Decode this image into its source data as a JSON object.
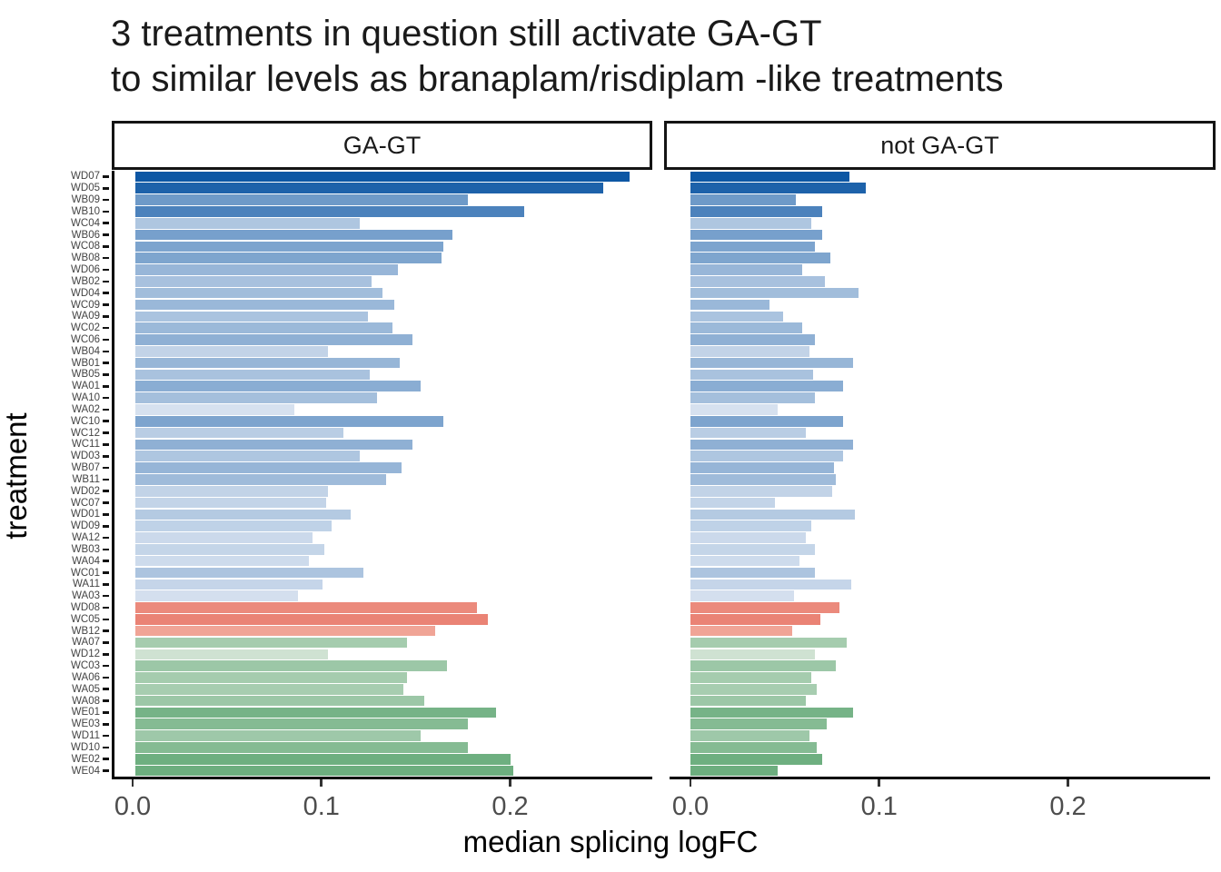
{
  "title": {
    "line1": "3 treatments in question still activate GA-GT",
    "line2": "to similar levels as branaplam/risdiplam -like treatments"
  },
  "facets": [
    {
      "label": "GA-GT"
    },
    {
      "label": "not GA-GT"
    }
  ],
  "axes": {
    "x_title": "median splicing logFC",
    "y_title": "treatment",
    "x_ticks": [
      "0.0",
      "0.1",
      "0.2"
    ],
    "x_tick_values": [
      0.0,
      0.1,
      0.2
    ]
  },
  "chart_data": {
    "type": "bar",
    "orientation": "horizontal",
    "title": "3 treatments in question still activate GA-GT to similar levels as branaplam/risdiplam -like treatments",
    "xlabel": "median splicing logFC",
    "ylabel": "treatment",
    "xlim": [
      0,
      0.2755
    ],
    "grid": false,
    "legend": false,
    "facet_labels": [
      "GA-GT",
      "not GA-GT"
    ],
    "categories": [
      "WD07",
      "WD05",
      "WB09",
      "WB10",
      "WC04",
      "WB06",
      "WC08",
      "WB08",
      "WD06",
      "WB02",
      "WD04",
      "WC09",
      "WA09",
      "WC02",
      "WC06",
      "WB04",
      "WB01",
      "WB05",
      "WA01",
      "WA10",
      "WA02",
      "WC10",
      "WC12",
      "WC11",
      "WD03",
      "WB07",
      "WB11",
      "WD02",
      "WC07",
      "WD01",
      "WD09",
      "WA12",
      "WB03",
      "WA04",
      "WC01",
      "WA11",
      "WA03",
      "WD08",
      "WC05",
      "WB12",
      "WA07",
      "WD12",
      "WC03",
      "WA06",
      "WA05",
      "WA08",
      "WE01",
      "WE03",
      "WD11",
      "WD10",
      "WE02",
      "WE04"
    ],
    "groups": [
      "ga-gt-activating",
      "ga-gt-activating",
      "ga-gt-activating",
      "ga-gt-activating",
      "ga-gt-activating",
      "ga-gt-activating",
      "ga-gt-activating",
      "ga-gt-activating",
      "ga-gt-activating",
      "ga-gt-activating",
      "ga-gt-activating",
      "ga-gt-activating",
      "ga-gt-activating",
      "ga-gt-activating",
      "ga-gt-activating",
      "ga-gt-activating",
      "ga-gt-activating",
      "ga-gt-activating",
      "ga-gt-activating",
      "ga-gt-activating",
      "ga-gt-activating",
      "ga-gt-activating",
      "ga-gt-activating",
      "ga-gt-activating",
      "ga-gt-activating",
      "ga-gt-activating",
      "ga-gt-activating",
      "ga-gt-activating",
      "ga-gt-activating",
      "ga-gt-activating",
      "ga-gt-activating",
      "ga-gt-activating",
      "ga-gt-activating",
      "ga-gt-activating",
      "ga-gt-activating",
      "ga-gt-activating",
      "ga-gt-activating",
      "treatment-in-question",
      "treatment-in-question",
      "treatment-in-question",
      "branaplam-risdiplam-like",
      "branaplam-risdiplam-like",
      "branaplam-risdiplam-like",
      "branaplam-risdiplam-like",
      "branaplam-risdiplam-like",
      "branaplam-risdiplam-like",
      "branaplam-risdiplam-like",
      "branaplam-risdiplam-like",
      "branaplam-risdiplam-like",
      "branaplam-risdiplam-like",
      "branaplam-risdiplam-like",
      "branaplam-risdiplam-like"
    ],
    "colors": [
      "#0D57A4",
      "#1D62AA",
      "#6E9AC8",
      "#4C82BC",
      "#AEC6E0",
      "#77A0CC",
      "#7DA4CE",
      "#7EA5CE",
      "#98B6D8",
      "#A8C1DE",
      "#A1BDDB",
      "#9AB8D9",
      "#AAC3DF",
      "#9BB9D9",
      "#8FB0D4",
      "#C2D3E7",
      "#97B6D7",
      "#A9C2DE",
      "#8AADD3",
      "#A4BFDC",
      "#D6E1EF",
      "#7DA4CE",
      "#B9CDE4",
      "#8FB0D4",
      "#AEC6E0",
      "#96B5D7",
      "#9FBBDA",
      "#C2D3E7",
      "#C3D4E8",
      "#B4CAE2",
      "#BFD2E7",
      "#CBD9EB",
      "#C4D5E8",
      "#CDDBEC",
      "#ACC4DF",
      "#C5D5E9",
      "#D4DFEE",
      "#EB8A7C",
      "#EA8375",
      "#F0A496",
      "#A5CCAE",
      "#CFE2D2",
      "#9CC7A7",
      "#A5CCAE",
      "#A7CDB0",
      "#9CC7A7",
      "#76B387",
      "#85BB93",
      "#9EC8A9",
      "#85BB93",
      "#6EAF80",
      "#6DAE7F"
    ],
    "series": [
      {
        "name": "GA-GT",
        "values": [
          0.262,
          0.248,
          0.176,
          0.206,
          0.119,
          0.168,
          0.163,
          0.162,
          0.139,
          0.125,
          0.131,
          0.137,
          0.123,
          0.136,
          0.147,
          0.102,
          0.14,
          0.124,
          0.151,
          0.128,
          0.084,
          0.163,
          0.11,
          0.147,
          0.119,
          0.141,
          0.133,
          0.102,
          0.101,
          0.114,
          0.104,
          0.094,
          0.1,
          0.092,
          0.121,
          0.099,
          0.086,
          0.181,
          0.187,
          0.159,
          0.144,
          0.102,
          0.165,
          0.144,
          0.142,
          0.153,
          0.191,
          0.176,
          0.151,
          0.176,
          0.199,
          0.2
        ]
      },
      {
        "name": "not GA-GT",
        "values": [
          0.084,
          0.093,
          0.056,
          0.07,
          0.064,
          0.07,
          0.066,
          0.074,
          0.059,
          0.071,
          0.089,
          0.042,
          0.049,
          0.059,
          0.066,
          0.063,
          0.086,
          0.065,
          0.081,
          0.066,
          0.046,
          0.081,
          0.061,
          0.086,
          0.081,
          0.076,
          0.077,
          0.075,
          0.045,
          0.087,
          0.064,
          0.061,
          0.066,
          0.058,
          0.066,
          0.085,
          0.055,
          0.079,
          0.069,
          0.054,
          0.083,
          0.066,
          0.077,
          0.064,
          0.067,
          0.061,
          0.086,
          0.072,
          0.063,
          0.067,
          0.07,
          0.046
        ]
      }
    ],
    "accent_colors": {
      "highlight_red": "#EA8375",
      "reference_green": "#6DAE7F",
      "max_blue": "#0D57A4",
      "min_blue": "#D6E1EF"
    }
  }
}
